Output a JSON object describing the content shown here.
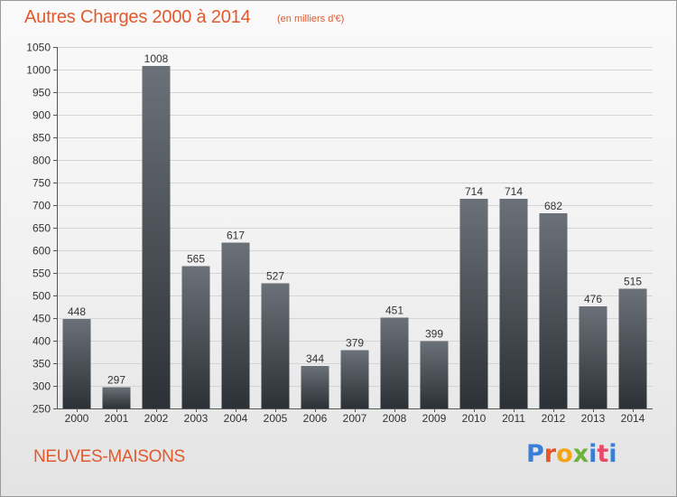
{
  "title": "Autres Charges 2000 à 2014",
  "unit_note": "(en milliers d'€)",
  "commune": "NEUVES-MAISONS",
  "logo": {
    "text": "Proxiti",
    "letter_colors": [
      "#3a7fd5",
      "#e8552a",
      "#f2a516",
      "#6fb23b",
      "#3a7fd5",
      "#e84a6a"
    ]
  },
  "colors": {
    "accent": "#e15a2d",
    "bar_top": "#6b7178",
    "bar_bottom": "#2c3137",
    "grid": "#d4d4d4"
  },
  "chart_data": {
    "type": "bar",
    "categories": [
      "2000",
      "2001",
      "2002",
      "2003",
      "2004",
      "2005",
      "2006",
      "2007",
      "2008",
      "2009",
      "2010",
      "2011",
      "2012",
      "2013",
      "2014"
    ],
    "values": [
      448,
      297,
      1008,
      565,
      617,
      527,
      344,
      379,
      451,
      399,
      714,
      714,
      682,
      476,
      515
    ],
    "ylim": [
      250,
      1050
    ],
    "yticks": [
      250,
      300,
      350,
      400,
      450,
      500,
      550,
      600,
      650,
      700,
      750,
      800,
      850,
      900,
      950,
      1000,
      1050
    ],
    "grid": true
  }
}
